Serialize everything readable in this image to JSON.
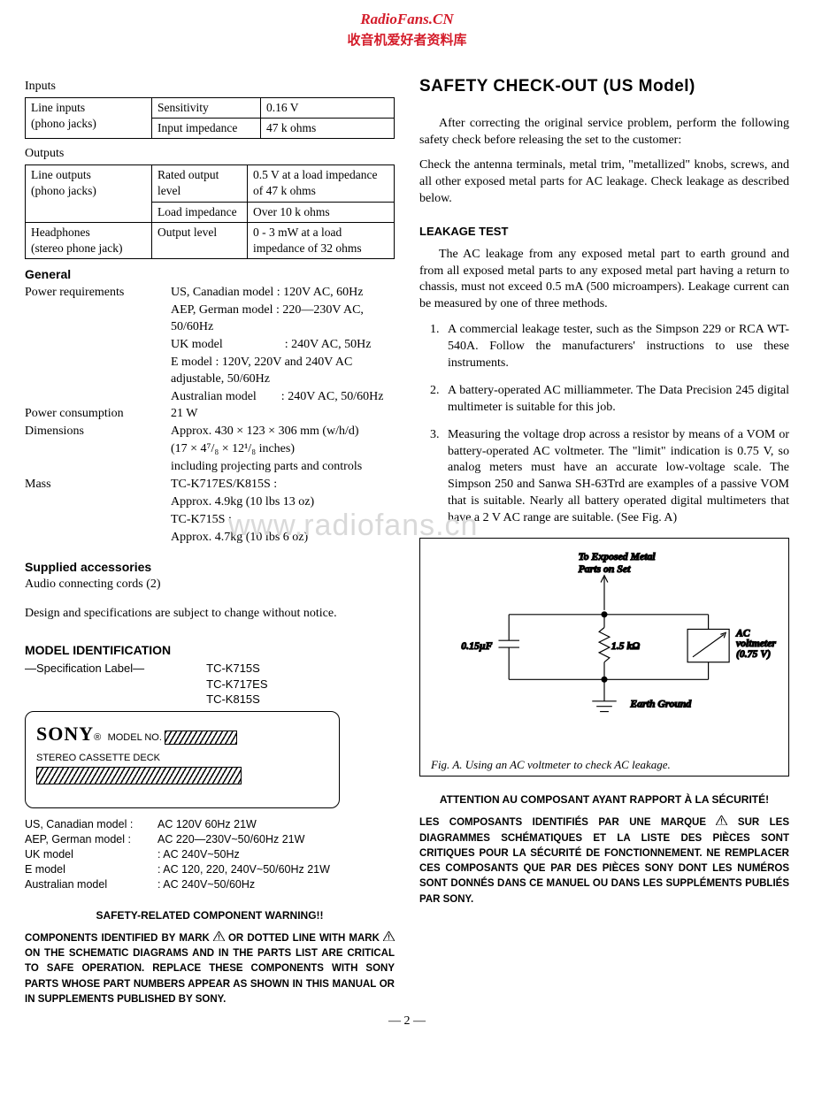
{
  "header": {
    "line1": "RadioFans.CN",
    "line2": "收音机爱好者资料库"
  },
  "left": {
    "inputs": {
      "label": "Inputs",
      "row_label": "Line inputs\n(phono jacks)",
      "r1a": "Sensitivity",
      "r1b": "0.16 V",
      "r2a": "Input impedance",
      "r2b": "47 k ohms"
    },
    "outputs": {
      "label": "Outputs",
      "row1_label": "Line outputs\n(phono jacks)",
      "r1a": "Rated output level",
      "r1b": "0.5 V at a load impedance of 47 k ohms",
      "r2a": "Load impedance",
      "r2b": "Over 10 k ohms",
      "row2_label": "Headphones\n(stereo phone jack)",
      "r3a": "Output level",
      "r3b": "0 - 3 mW at a load impedance of 32 ohms"
    },
    "general": {
      "head": "General",
      "rows": [
        {
          "l": "Power requirements",
          "v": "US, Canadian model : 120V AC, 60Hz"
        },
        {
          "l": "",
          "v": "AEP, German model : 220—230V AC, 50/60Hz"
        },
        {
          "l": "",
          "v": "UK model                    : 240V AC, 50Hz"
        },
        {
          "l": "",
          "v": "E model : 120V, 220V and 240V AC adjustable, 50/60Hz"
        },
        {
          "l": "",
          "v": "Australian model        : 240V AC, 50/60Hz"
        },
        {
          "l": "Power consumption",
          "v": "21 W"
        },
        {
          "l": "Dimensions",
          "v": "Approx. 430 × 123 × 306 mm (w/h/d)"
        },
        {
          "l": "",
          "v": "(17 × 4⁷/₈ × 12¹/₈ inches)"
        },
        {
          "l": "",
          "v": "including projecting parts and controls"
        },
        {
          "l": "Mass",
          "v": "TC-K717ES/K815S :"
        },
        {
          "l": "",
          "v": "Approx. 4.9kg (10 lbs 13 oz)"
        },
        {
          "l": "",
          "v": "TC-K715S :"
        },
        {
          "l": "",
          "v": "Approx. 4.7kg (10 lbs 6 oz)"
        }
      ]
    },
    "supplied": {
      "head": "Supplied accessories",
      "body": "Audio connecting cords (2)"
    },
    "notice": "Design and specifications are subject to change without notice.",
    "modelid": {
      "head": "MODEL IDENTIFICATION",
      "spec_label": "—Specification Label—",
      "models": "TC-K715S\nTC-K717ES\nTC-K815S",
      "sony": "SONY",
      "modelno": "MODEL NO.",
      "deck": "STEREO CASSETTE DECK",
      "lines": [
        {
          "l": "US, Canadian model :",
          "v": "AC 120V 60Hz 21W"
        },
        {
          "l": "AEP, German model :",
          "v": "AC 220—230V~50/60Hz  21W"
        },
        {
          "l": "UK model",
          "v": ": AC 240V~50Hz"
        },
        {
          "l": "E model",
          "v": ": AC 120, 220, 240V~50/60Hz  21W"
        },
        {
          "l": "Australian model",
          "v": ": AC 240V~50/60Hz"
        }
      ]
    },
    "warn": {
      "head": "SAFETY-RELATED COMPONENT WARNING!!",
      "body1": "COMPONENTS IDENTIFIED BY MARK ",
      "body2": " OR DOTTED LINE WITH MARK ",
      "body3": " ON THE SCHEMATIC DIAGRAMS AND IN THE PARTS LIST ARE CRITICAL TO SAFE OPERATION. REPLACE THESE COMPONENTS WITH SONY PARTS WHOSE PART NUMBERS APPEAR AS SHOWN IN THIS MANUAL OR IN SUPPLEMENTS PUBLISHED BY SONY."
    }
  },
  "right": {
    "title": "SAFETY CHECK-OUT  (US Model)",
    "p1": "After correcting the original service problem, perform the following safety check before releasing the set to the customer:",
    "p2": "Check the antenna terminals, metal trim, \"metallized\" knobs, screws, and all other exposed metal parts for AC leakage. Check leakage as described below.",
    "leak_head": "LEAKAGE TEST",
    "leak_p": "The AC leakage from any exposed metal part to earth ground and from all exposed metal parts to any exposed metal part having a return to chassis, must not exceed 0.5 mA (500 microampers). Leakage current can be measured by one of three methods.",
    "items": [
      "A commercial leakage tester, such as the Simpson 229 or RCA WT-540A. Follow the manufacturers' instructions to use these instruments.",
      "A battery-operated AC milliammeter. The Data Precision 245 digital multimeter is suitable for this job.",
      "Measuring the voltage drop across a resistor by means of a VOM or battery-operated AC voltmeter. The \"limit\" indication is 0.75 V, so analog meters must have an accurate low-voltage scale. The Simpson 250 and Sanwa SH-63Trd are examples of a passive VOM that is suitable. Nearly all battery operated digital multimeters that have a 2 V AC range are suitable. (See Fig. A)"
    ],
    "fig": {
      "top": "To Exposed Metal\nParts on Set",
      "cap": "0.15µF",
      "res": "1.5 kΩ",
      "meter": "AC\nvoltmeter\n(0.75 V)",
      "ground": "Earth Ground",
      "caption": "Fig. A.    Using an AC voltmeter to check AC leakage."
    },
    "warn": {
      "head": "ATTENTION AU COMPOSANT AYANT RAPPORT À LA SÉCURITÉ!",
      "b1": "LES COMPOSANTS IDENTIFIÉS PAR UNE MARQUE ",
      "b2": " SUR LES DIAGRAMMES SCHÉMATIQUES ET LA LISTE DES PIÈCES SONT CRITIQUES POUR LA SÉCURITÉ DE FONCTIONNEMENT. NE REMPLACER CES COMPOSANTS QUE PAR DES PIÈCES SONY DONT LES NUMÉROS SONT DONNÉS DANS CE MANUEL OU DANS LES SUPPLÉMENTS PUBLIÉS PAR SONY."
    }
  },
  "watermark": "www.radiofans.cn",
  "pagenum": "— 2 —"
}
